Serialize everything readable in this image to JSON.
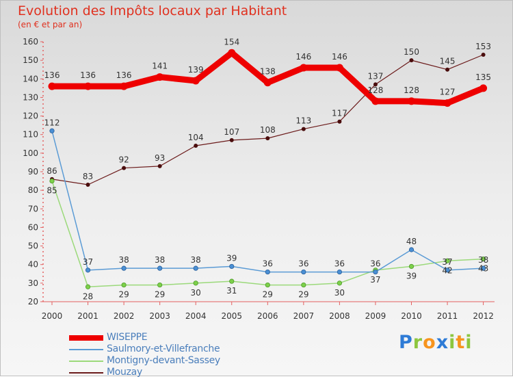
{
  "chart_data": {
    "type": "line",
    "title": "Evolution des Impôts locaux par Habitant",
    "subtitle": "(en € et par an)",
    "xlabel": "",
    "ylabel": "",
    "ylim": [
      20,
      160
    ],
    "yticks": [
      20,
      30,
      40,
      50,
      60,
      70,
      80,
      90,
      100,
      110,
      120,
      130,
      140,
      150,
      160
    ],
    "grid": false,
    "legend_position": "bottom-left",
    "x": [
      "2000",
      "2001",
      "2002",
      "2003",
      "2004",
      "2005",
      "2006",
      "2007",
      "2008",
      "2009",
      "2010",
      "2011",
      "2012"
    ],
    "series": [
      {
        "name": "Mouzay",
        "color": "#6b1a1a",
        "values": [
          86,
          83,
          92,
          93,
          104,
          107,
          108,
          113,
          117,
          137,
          150,
          145,
          153
        ]
      },
      {
        "name": "Montigny-devant-Sassey",
        "color": "#9bd97a",
        "values": [
          85,
          28,
          29,
          29,
          30,
          31,
          29,
          29,
          30,
          37,
          39,
          42,
          43
        ]
      },
      {
        "name": "Saulmory-et-Villefranche",
        "color": "#5b9bd5",
        "values": [
          112,
          37,
          38,
          38,
          38,
          39,
          36,
          36,
          36,
          36,
          48,
          37,
          38
        ]
      },
      {
        "name": "WISEPPE",
        "color": "#ee0000",
        "values": [
          136,
          136,
          136,
          141,
          139,
          154,
          138,
          146,
          146,
          128,
          128,
          127,
          135
        ]
      }
    ]
  },
  "legend": {
    "items": [
      {
        "label": "WISEPPE",
        "color": "#ee0000"
      },
      {
        "label": "Saulmory-et-Villefranche",
        "color": "#5b9bd5"
      },
      {
        "label": "Montigny-devant-Sassey",
        "color": "#9bd97a"
      },
      {
        "label": "Mouzay",
        "color": "#6b1a1a"
      }
    ]
  },
  "logo": {
    "text": "Proxiti",
    "letters": [
      "P",
      "r",
      "o",
      "x",
      "i",
      "t",
      "i"
    ],
    "colors": [
      "#2e7bd6",
      "#8dc63f",
      "#f7941d",
      "#2e7bd6",
      "#8dc63f",
      "#f7941d",
      "#8dc63f"
    ]
  }
}
